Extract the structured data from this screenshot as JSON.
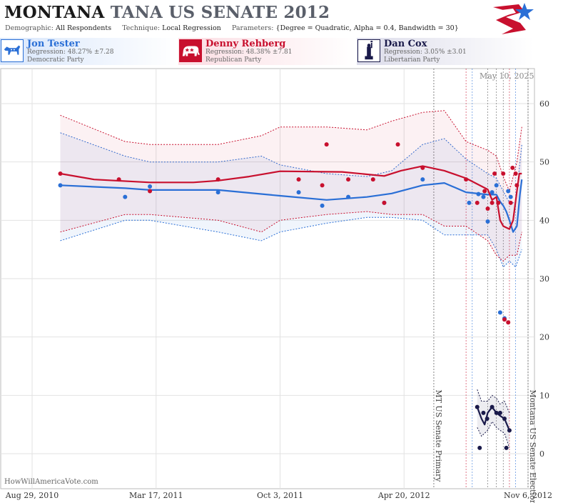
{
  "header": {
    "state": "MONTANA",
    "race": "TANA US SENATE 2012",
    "demographic_label": "Demographic:",
    "demographic": "All Respondents",
    "technique_label": "Technique:",
    "technique": "Local Regression",
    "parameters_label": "Parameters:",
    "parameters": "{Degree = Quadratic, Alpha = 0.4, Bandwidth = 30}"
  },
  "candidates": [
    {
      "name": "Jon Tester",
      "regression": "Regression: 48.27% ±7.28",
      "party": "Democratic Party",
      "color": "#2a6fd6",
      "icon": "donkey-icon"
    },
    {
      "name": "Denny Rehberg",
      "regression": "Regression: 48.38% ±7.81",
      "party": "Republican Party",
      "color": "#c8102e",
      "icon": "elephant-icon"
    },
    {
      "name": "Dan Cox",
      "regression": "Regression: 3.05% ±3.01",
      "party": "Libertarian Party",
      "color": "#1a1a4a",
      "icon": "statue-of-liberty-icon"
    }
  ],
  "watermark": "HowWillAmericaVote.com",
  "datestamp": "May 10, 2025",
  "chart_data": {
    "type": "line",
    "x_tick_labels": [
      "Aug 29, 2010",
      "Mar 17, 2011",
      "Oct 3, 2011",
      "Apr 20, 2012",
      "Nov 6, 2012"
    ],
    "x_tick_days": [
      0,
      200,
      400,
      600,
      800
    ],
    "y_ticks": [
      0,
      10,
      20,
      30,
      40,
      50,
      60
    ],
    "ylim": [
      -6,
      66
    ],
    "grid": true,
    "events": [
      {
        "day": 648,
        "label": "MT US Senate Primary"
      },
      {
        "day": 800,
        "label": "Montana US Senate Election"
      }
    ],
    "series": [
      {
        "name": "Jon Tester",
        "color": "#2a6fd6",
        "trend": [
          [
            45.5,
            46
          ],
          [
            150,
            45.5
          ],
          [
            190,
            45.2
          ],
          [
            300,
            45.2
          ],
          [
            400,
            44.2
          ],
          [
            475,
            43.5
          ],
          [
            540,
            44
          ],
          [
            580,
            44.6
          ],
          [
            630,
            46
          ],
          [
            665,
            46.4
          ],
          [
            700,
            44.8
          ],
          [
            735,
            44.4
          ],
          [
            749,
            44.4
          ],
          [
            755,
            43.2
          ],
          [
            760,
            42.5
          ],
          [
            765,
            41.5
          ],
          [
            770,
            40
          ],
          [
            776,
            38
          ],
          [
            782,
            39
          ],
          [
            787,
            44.5
          ],
          [
            790,
            47
          ]
        ],
        "upper": [
          [
            45.5,
            55
          ],
          [
            150,
            51
          ],
          [
            190,
            50
          ],
          [
            300,
            50
          ],
          [
            370,
            51
          ],
          [
            400,
            49.5
          ],
          [
            475,
            48
          ],
          [
            540,
            47.5
          ],
          [
            580,
            48.5
          ],
          [
            630,
            53
          ],
          [
            665,
            54
          ],
          [
            700,
            50.5
          ],
          [
            735,
            48
          ],
          [
            749,
            47.2
          ],
          [
            760,
            45
          ],
          [
            770,
            43
          ],
          [
            780,
            43
          ],
          [
            790,
            53
          ]
        ],
        "lower": [
          [
            45.5,
            36.5
          ],
          [
            150,
            40
          ],
          [
            190,
            40
          ],
          [
            300,
            38
          ],
          [
            370,
            36.5
          ],
          [
            400,
            38
          ],
          [
            475,
            39.5
          ],
          [
            540,
            40.5
          ],
          [
            580,
            40.5
          ],
          [
            630,
            40
          ],
          [
            665,
            37.5
          ],
          [
            700,
            37.5
          ],
          [
            735,
            37.5
          ],
          [
            749,
            35
          ],
          [
            760,
            32
          ],
          [
            770,
            33
          ],
          [
            780,
            32
          ],
          [
            790,
            35
          ]
        ],
        "points": [
          [
            45.5,
            46
          ],
          [
            150,
            44
          ],
          [
            190,
            45.8
          ],
          [
            300,
            44.8
          ],
          [
            430,
            44.8
          ],
          [
            468,
            42.5
          ],
          [
            510,
            44
          ],
          [
            568,
            43
          ],
          [
            630,
            47
          ],
          [
            705,
            43
          ],
          [
            720,
            44.5
          ],
          [
            728,
            44
          ],
          [
            735,
            39.8
          ],
          [
            742,
            44.8
          ],
          [
            749,
            46
          ],
          [
            755,
            24.2
          ],
          [
            762,
            23.2
          ],
          [
            768,
            45
          ],
          [
            772,
            44
          ]
        ]
      },
      {
        "name": "Denny Rehberg",
        "color": "#c8102e",
        "trend": [
          [
            45.5,
            48
          ],
          [
            100,
            47
          ],
          [
            190,
            46.5
          ],
          [
            260,
            46.5
          ],
          [
            300,
            46.8
          ],
          [
            350,
            47.5
          ],
          [
            400,
            48.4
          ],
          [
            500,
            48.3
          ],
          [
            568,
            47.6
          ],
          [
            595,
            48.5
          ],
          [
            630,
            49.3
          ],
          [
            665,
            48.5
          ],
          [
            700,
            47.2
          ],
          [
            735,
            45.3
          ],
          [
            742,
            43.5
          ],
          [
            749,
            44
          ],
          [
            755,
            40
          ],
          [
            760,
            39
          ],
          [
            770,
            38.5
          ],
          [
            776,
            40
          ],
          [
            782,
            45
          ],
          [
            786,
            48
          ],
          [
            790,
            48
          ]
        ],
        "upper": [
          [
            45.5,
            58
          ],
          [
            150,
            53.5
          ],
          [
            190,
            53
          ],
          [
            300,
            53
          ],
          [
            370,
            54.5
          ],
          [
            400,
            56
          ],
          [
            475,
            56
          ],
          [
            540,
            55.5
          ],
          [
            580,
            57
          ],
          [
            630,
            58.5
          ],
          [
            665,
            58.8
          ],
          [
            700,
            53.5
          ],
          [
            735,
            52
          ],
          [
            749,
            51
          ],
          [
            760,
            47.5
          ],
          [
            770,
            45
          ],
          [
            782,
            50
          ],
          [
            790,
            56
          ]
        ],
        "lower": [
          [
            45.5,
            38
          ],
          [
            150,
            41
          ],
          [
            190,
            41
          ],
          [
            300,
            40
          ],
          [
            370,
            38
          ],
          [
            400,
            40
          ],
          [
            475,
            41
          ],
          [
            540,
            41.5
          ],
          [
            580,
            41
          ],
          [
            630,
            41
          ],
          [
            665,
            39
          ],
          [
            700,
            39
          ],
          [
            735,
            36.5
          ],
          [
            749,
            34
          ],
          [
            760,
            33
          ],
          [
            770,
            34
          ],
          [
            782,
            34
          ],
          [
            790,
            38
          ]
        ],
        "points": [
          [
            45.5,
            48
          ],
          [
            140,
            47
          ],
          [
            190,
            45
          ],
          [
            300,
            47
          ],
          [
            430,
            47
          ],
          [
            468,
            46
          ],
          [
            475,
            53
          ],
          [
            510,
            47
          ],
          [
            550,
            47
          ],
          [
            568,
            43
          ],
          [
            590,
            53
          ],
          [
            630,
            49
          ],
          [
            700,
            47
          ],
          [
            718,
            43
          ],
          [
            730,
            45
          ],
          [
            735,
            42
          ],
          [
            742,
            43
          ],
          [
            746,
            48
          ],
          [
            752,
            43
          ],
          [
            760,
            48
          ],
          [
            762,
            23
          ],
          [
            768,
            22.5
          ],
          [
            772,
            43
          ],
          [
            775,
            49
          ],
          [
            780,
            48
          ],
          [
            782,
            46
          ]
        ]
      },
      {
        "name": "Dan Cox",
        "color": "#1a1a4a",
        "trend": [
          [
            718,
            8
          ],
          [
            725,
            6
          ],
          [
            730,
            5
          ],
          [
            735,
            7
          ],
          [
            742,
            8
          ],
          [
            749,
            7
          ],
          [
            755,
            6.5
          ],
          [
            762,
            6
          ],
          [
            770,
            4
          ]
        ],
        "upper": [
          [
            718,
            11
          ],
          [
            725,
            9
          ],
          [
            735,
            9
          ],
          [
            742,
            10
          ],
          [
            749,
            9.5
          ],
          [
            755,
            8.5
          ],
          [
            762,
            9
          ],
          [
            770,
            7
          ]
        ],
        "lower": [
          [
            718,
            4.5
          ],
          [
            725,
            3
          ],
          [
            735,
            4
          ],
          [
            742,
            5.5
          ],
          [
            749,
            4.5
          ],
          [
            755,
            4
          ],
          [
            762,
            3.5
          ],
          [
            770,
            1
          ]
        ],
        "points": [
          [
            718,
            8
          ],
          [
            722,
            1
          ],
          [
            728,
            7
          ],
          [
            734,
            6
          ],
          [
            742,
            8
          ],
          [
            749,
            7
          ],
          [
            755,
            7
          ],
          [
            762,
            6
          ],
          [
            765,
            1
          ],
          [
            770,
            4
          ]
        ]
      }
    ]
  }
}
